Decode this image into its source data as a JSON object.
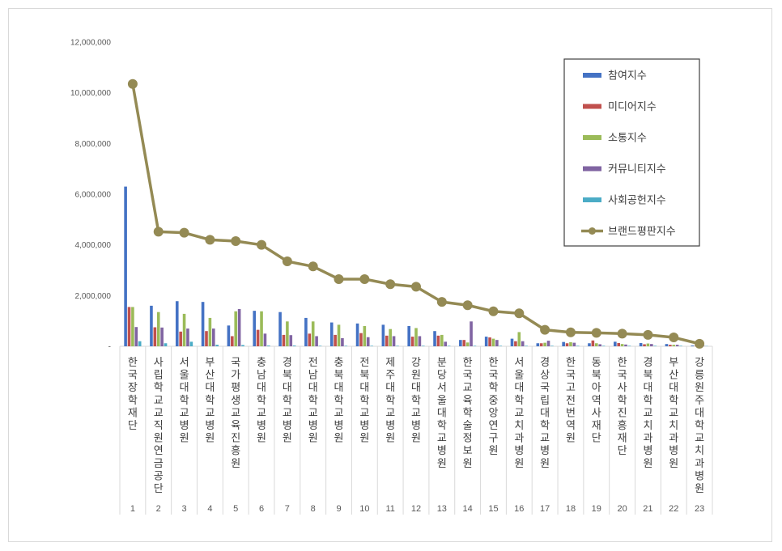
{
  "chart_data": {
    "type": "bar",
    "title": "",
    "xlabel": "",
    "ylabel": "",
    "ylim": [
      0,
      12000000
    ],
    "yticks": [
      0,
      2000000,
      4000000,
      6000000,
      8000000,
      10000000,
      12000000
    ],
    "ytick_labels": [
      "-",
      "2,000,000",
      "4,000,000",
      "6,000,000",
      "8,000,000",
      "10,000,000",
      "12,000,000"
    ],
    "grid": false,
    "legend_position": "top-right",
    "categories": [
      "한국장학재단",
      "사립학교교직원연금공단",
      "서울대학교병원",
      "부산대학교병원",
      "국가평생교육진흥원",
      "충남대학교병원",
      "경북대학교병원",
      "전남대학교병원",
      "충북대학교병원",
      "전북대학교병원",
      "제주대학교병원",
      "강원대학교병원",
      "분당서울대학교병원",
      "한국교육학술정보원",
      "한국학중앙연구원",
      "서울대학교치과병원",
      "경상국립대학교병원",
      "한국고전번역원",
      "동북아역사재단",
      "한국사학진흥재단",
      "경북대학교치과병원",
      "부산대학교치과병원",
      "강릉원주대학교치과병원"
    ],
    "ranks": [
      "1",
      "2",
      "3",
      "4",
      "5",
      "6",
      "7",
      "8",
      "9",
      "10",
      "11",
      "12",
      "13",
      "14",
      "15",
      "16",
      "17",
      "18",
      "19",
      "20",
      "21",
      "22",
      "23"
    ],
    "series": [
      {
        "name": "참여지수",
        "type": "bar",
        "color": "#4472c4",
        "values": [
          6300000,
          1600000,
          1780000,
          1750000,
          820000,
          1400000,
          1350000,
          1120000,
          940000,
          900000,
          850000,
          800000,
          600000,
          250000,
          380000,
          300000,
          120000,
          170000,
          120000,
          180000,
          130000,
          90000,
          30000
        ]
      },
      {
        "name": "미디어지수",
        "type": "bar",
        "color": "#c0504d",
        "values": [
          1550000,
          750000,
          580000,
          600000,
          400000,
          650000,
          450000,
          500000,
          450000,
          520000,
          420000,
          380000,
          420000,
          250000,
          350000,
          200000,
          120000,
          120000,
          230000,
          130000,
          80000,
          60000,
          20000
        ]
      },
      {
        "name": "소통지수",
        "type": "bar",
        "color": "#9bbb59",
        "values": [
          1550000,
          1350000,
          1280000,
          1120000,
          1380000,
          1380000,
          980000,
          980000,
          850000,
          800000,
          680000,
          720000,
          450000,
          150000,
          300000,
          560000,
          140000,
          160000,
          120000,
          90000,
          110000,
          60000,
          20000
        ]
      },
      {
        "name": "커뮤니티지수",
        "type": "bar",
        "color": "#8064a2",
        "values": [
          760000,
          740000,
          700000,
          700000,
          1470000,
          500000,
          440000,
          400000,
          320000,
          360000,
          400000,
          400000,
          180000,
          980000,
          250000,
          200000,
          220000,
          140000,
          80000,
          70000,
          90000,
          60000,
          20000
        ]
      },
      {
        "name": "사회공헌지수",
        "type": "bar",
        "color": "#4bacc6",
        "values": [
          200000,
          120000,
          180000,
          60000,
          50000,
          30000,
          30000,
          20000,
          20000,
          20000,
          20000,
          20000,
          20000,
          20000,
          20000,
          20000,
          20000,
          20000,
          20000,
          20000,
          20000,
          20000,
          10000
        ]
      },
      {
        "name": "브랜드평판지수",
        "type": "line",
        "color": "#948a54",
        "values": [
          10350000,
          4520000,
          4480000,
          4200000,
          4150000,
          4000000,
          3350000,
          3150000,
          2650000,
          2650000,
          2450000,
          2350000,
          1750000,
          1620000,
          1380000,
          1300000,
          650000,
          550000,
          530000,
          500000,
          450000,
          350000,
          100000
        ]
      }
    ]
  }
}
